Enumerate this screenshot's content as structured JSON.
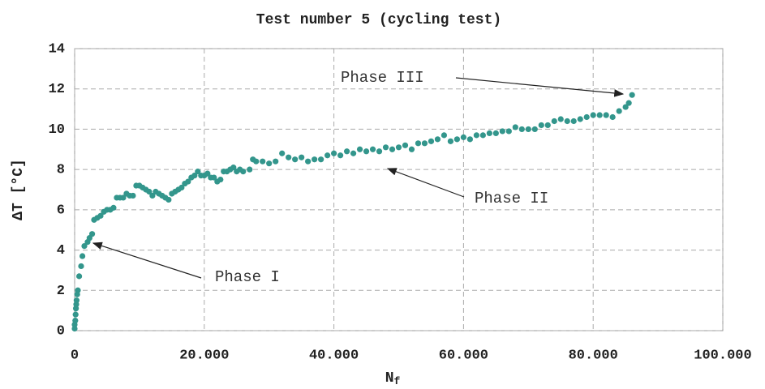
{
  "chart_data": {
    "type": "scatter",
    "title": "Test number 5 (cycling test)",
    "y_label": "ΔT [°C]",
    "x_label": {
      "base": "N",
      "sub": "f"
    },
    "color": "#33968c",
    "grid": true,
    "xlim": [
      0,
      100000
    ],
    "ylim": [
      0,
      14
    ],
    "xticks": [
      0,
      {
        "value": 20000,
        "label": "20.000"
      },
      {
        "value": 40000,
        "label": "40.000"
      },
      {
        "value": 60000,
        "label": "60.000"
      },
      {
        "value": 80000,
        "label": "80.000"
      },
      {
        "value": 100000,
        "label": "100.000"
      }
    ],
    "yticks": [
      0,
      2,
      4,
      6,
      8,
      10,
      12,
      14
    ],
    "annotations": [
      "Phase I",
      "Phase II",
      "Phase III"
    ],
    "x": [
      0,
      0,
      100,
      150,
      200,
      250,
      300,
      400,
      500,
      700,
      1000,
      1200,
      1500,
      2000,
      2300,
      2700,
      3000,
      3500,
      4000,
      4500,
      5000,
      5500,
      6000,
      6500,
      7000,
      7500,
      8000,
      8500,
      9000,
      9500,
      10000,
      10500,
      11000,
      11500,
      12000,
      12500,
      13000,
      13500,
      14000,
      14500,
      15000,
      15500,
      16000,
      16500,
      17000,
      17500,
      18000,
      18500,
      19000,
      19500,
      20000,
      20500,
      21000,
      21500,
      22000,
      22500,
      23000,
      23500,
      24000,
      24500,
      25000,
      25500,
      26000,
      27000,
      27500,
      28000,
      29000,
      30000,
      31000,
      32000,
      33000,
      34000,
      35000,
      36000,
      37000,
      38000,
      39000,
      40000,
      41000,
      42000,
      43000,
      44000,
      45000,
      46000,
      47000,
      48000,
      49000,
      50000,
      51000,
      52000,
      53000,
      54000,
      55000,
      56000,
      57000,
      58000,
      59000,
      60000,
      61000,
      62000,
      63000,
      64000,
      65000,
      66000,
      67000,
      68000,
      69000,
      70000,
      71000,
      72000,
      73000,
      74000,
      75000,
      76000,
      77000,
      78000,
      79000,
      80000,
      81000,
      82000,
      83000,
      84000,
      85000,
      85500,
      86000
    ],
    "y": [
      0.1,
      0.3,
      0.5,
      0.8,
      1.1,
      1.3,
      1.5,
      1.8,
      2.0,
      2.7,
      3.2,
      3.7,
      4.2,
      4.4,
      4.6,
      4.8,
      5.5,
      5.6,
      5.7,
      5.9,
      6.0,
      6.0,
      6.1,
      6.6,
      6.6,
      6.6,
      6.8,
      6.7,
      6.7,
      7.2,
      7.2,
      7.1,
      7.0,
      6.9,
      6.7,
      6.9,
      6.8,
      6.7,
      6.6,
      6.5,
      6.8,
      6.9,
      7.0,
      7.1,
      7.3,
      7.4,
      7.6,
      7.7,
      7.9,
      7.7,
      7.7,
      7.8,
      7.6,
      7.6,
      7.4,
      7.5,
      7.9,
      7.9,
      8.0,
      8.1,
      7.9,
      8.0,
      7.9,
      8.0,
      8.5,
      8.4,
      8.4,
      8.3,
      8.4,
      8.8,
      8.6,
      8.5,
      8.6,
      8.4,
      8.5,
      8.5,
      8.7,
      8.8,
      8.7,
      8.9,
      8.8,
      9.0,
      8.9,
      9.0,
      8.9,
      9.1,
      9.0,
      9.1,
      9.2,
      9.0,
      9.3,
      9.3,
      9.4,
      9.5,
      9.7,
      9.4,
      9.5,
      9.6,
      9.5,
      9.7,
      9.7,
      9.8,
      9.8,
      9.9,
      9.9,
      10.1,
      10.0,
      10.0,
      10.0,
      10.2,
      10.2,
      10.4,
      10.5,
      10.4,
      10.4,
      10.5,
      10.6,
      10.7,
      10.7,
      10.7,
      10.6,
      10.9,
      11.1,
      11.3,
      11.7
    ]
  }
}
